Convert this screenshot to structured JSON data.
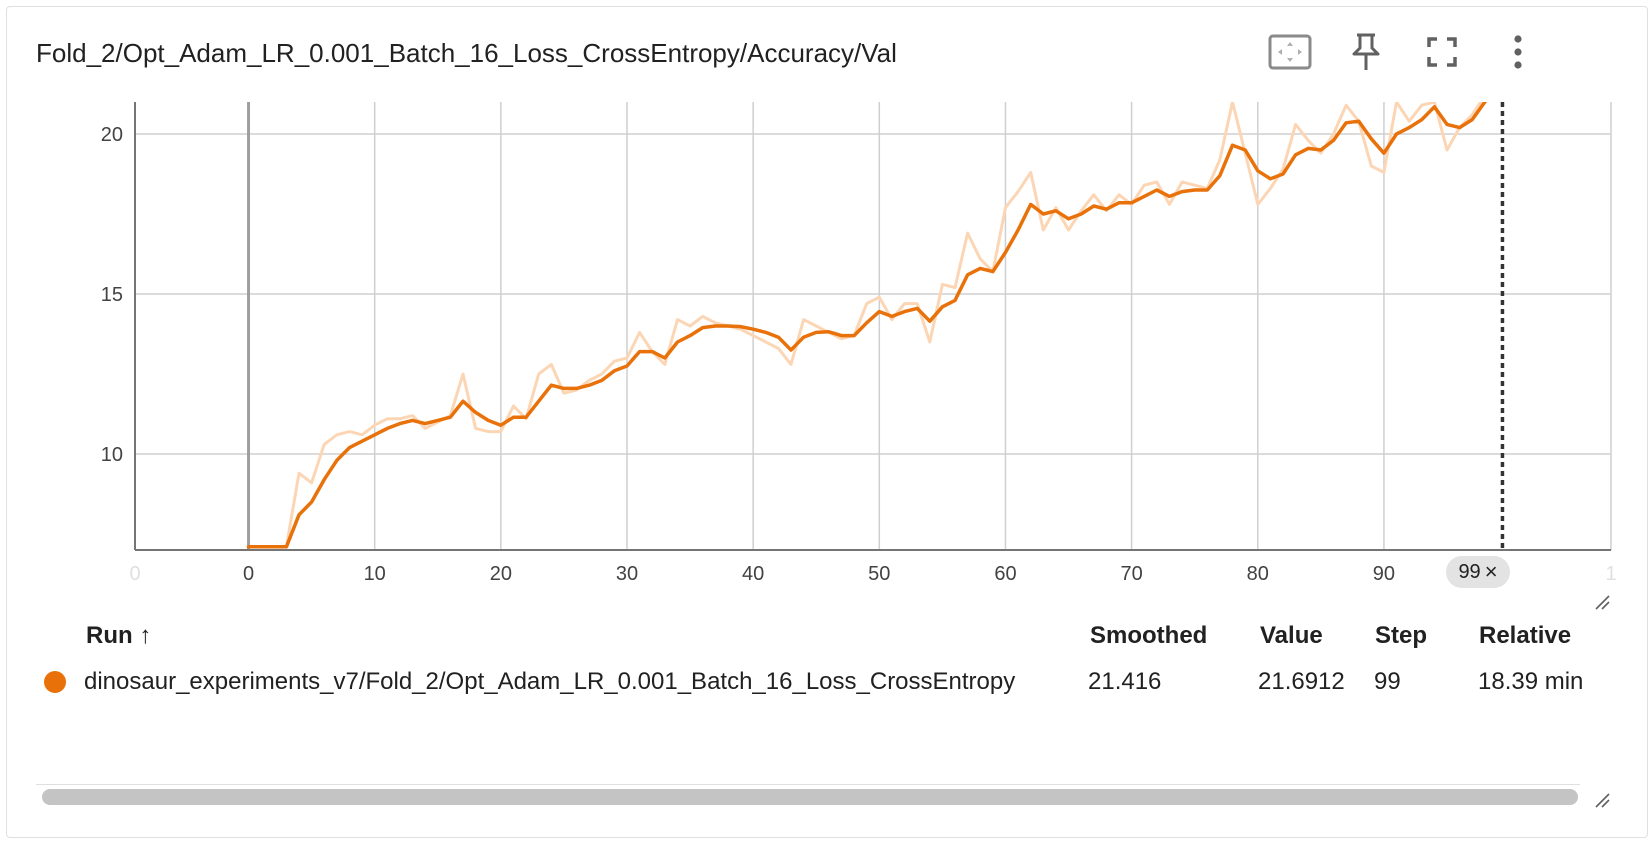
{
  "card": {
    "title": "Fold_2/Opt_Adam_LR_0.001_Batch_16_Loss_CrossEntropy/Accuracy/Val"
  },
  "toolbar": {
    "icons": [
      "fit-domain-icon",
      "pin-icon",
      "fullscreen-icon",
      "more-vert-icon"
    ]
  },
  "colors": {
    "smoothed": "#e8710a",
    "raw": "#fcd6b4",
    "grid": "#cfcfcf",
    "axis": "#9e9e9e"
  },
  "chart_data": {
    "type": "line",
    "title": "",
    "xlabel": "",
    "ylabel": "",
    "xlim": [
      -9,
      108
    ],
    "ylim": [
      7,
      21
    ],
    "x_ticks": [
      "0",
      "0",
      "10",
      "20",
      "30",
      "40",
      "50",
      "60",
      "70",
      "80",
      "90",
      "1"
    ],
    "y_ticks": [
      "10",
      "15",
      "20"
    ],
    "grid": true,
    "cursor_step": 99,
    "cursor_label": "99",
    "series": [
      {
        "role": "raw",
        "x": [
          0,
          1,
          2,
          3,
          4,
          5,
          6,
          7,
          8,
          9,
          10,
          11,
          12,
          13,
          14,
          15,
          16,
          17,
          18,
          19,
          20,
          21,
          22,
          23,
          24,
          25,
          26,
          27,
          28,
          29,
          30,
          31,
          32,
          33,
          34,
          35,
          36,
          37,
          38,
          39,
          40,
          41,
          42,
          43,
          44,
          45,
          46,
          47,
          48,
          49,
          50,
          51,
          52,
          53,
          54,
          55,
          56,
          57,
          58,
          59,
          60,
          61,
          62,
          63,
          64,
          65,
          66,
          67,
          68,
          69,
          70,
          71,
          72,
          73,
          74,
          75,
          76,
          77,
          78,
          79,
          80,
          81,
          82,
          83,
          84,
          85,
          86,
          87,
          88,
          89,
          90,
          91,
          92,
          93,
          94,
          95,
          96,
          97,
          98,
          99
        ],
        "values": [
          7.1,
          7.1,
          7.1,
          7.1,
          9.4,
          9.1,
          10.3,
          10.6,
          10.7,
          10.6,
          10.9,
          11.1,
          11.1,
          11.2,
          10.8,
          11.0,
          11.2,
          12.5,
          10.8,
          10.7,
          10.7,
          11.5,
          11.1,
          12.5,
          12.8,
          11.9,
          12.0,
          12.3,
          12.5,
          12.9,
          13.0,
          13.8,
          13.2,
          12.8,
          14.2,
          14.0,
          14.3,
          14.1,
          14.0,
          13.9,
          13.7,
          13.5,
          13.3,
          12.8,
          14.2,
          14.0,
          13.8,
          13.6,
          13.7,
          14.7,
          14.9,
          14.2,
          14.7,
          14.7,
          13.5,
          15.3,
          15.2,
          16.9,
          16.1,
          15.7,
          17.7,
          18.2,
          18.8,
          17.0,
          17.7,
          17.0,
          17.6,
          18.1,
          17.6,
          18.1,
          17.8,
          18.4,
          18.5,
          17.8,
          18.5,
          18.4,
          18.3,
          19.2,
          21.0,
          19.4,
          17.8,
          18.3,
          18.9,
          20.3,
          19.8,
          19.4,
          20.0,
          20.9,
          20.4,
          19.0,
          18.8,
          21.0,
          20.4,
          20.9,
          21.0,
          19.5,
          20.2,
          20.6,
          21.2,
          21.6912
        ]
      },
      {
        "role": "smoothed",
        "x": [
          0,
          1,
          2,
          3,
          4,
          5,
          6,
          7,
          8,
          9,
          10,
          11,
          12,
          13,
          14,
          15,
          16,
          17,
          18,
          19,
          20,
          21,
          22,
          23,
          24,
          25,
          26,
          27,
          28,
          29,
          30,
          31,
          32,
          33,
          34,
          35,
          36,
          37,
          38,
          39,
          40,
          41,
          42,
          43,
          44,
          45,
          46,
          47,
          48,
          49,
          50,
          51,
          52,
          53,
          54,
          55,
          56,
          57,
          58,
          59,
          60,
          61,
          62,
          63,
          64,
          65,
          66,
          67,
          68,
          69,
          70,
          71,
          72,
          73,
          74,
          75,
          76,
          77,
          78,
          79,
          80,
          81,
          82,
          83,
          84,
          85,
          86,
          87,
          88,
          89,
          90,
          91,
          92,
          93,
          94,
          95,
          96,
          97,
          98,
          99
        ],
        "values": [
          7.1,
          7.1,
          7.1,
          7.1,
          8.1,
          8.5,
          9.2,
          9.8,
          10.2,
          10.4,
          10.6,
          10.8,
          10.95,
          11.05,
          10.95,
          11.05,
          11.15,
          11.65,
          11.3,
          11.05,
          10.9,
          11.15,
          11.15,
          11.65,
          12.15,
          12.05,
          12.05,
          12.15,
          12.3,
          12.6,
          12.75,
          13.2,
          13.2,
          13.0,
          13.5,
          13.7,
          13.95,
          14.0,
          14.0,
          13.98,
          13.9,
          13.8,
          13.65,
          13.25,
          13.65,
          13.8,
          13.82,
          13.7,
          13.7,
          14.1,
          14.45,
          14.3,
          14.45,
          14.55,
          14.15,
          14.6,
          14.8,
          15.6,
          15.8,
          15.7,
          16.3,
          17.0,
          17.8,
          17.5,
          17.6,
          17.35,
          17.5,
          17.75,
          17.65,
          17.85,
          17.85,
          18.05,
          18.25,
          18.05,
          18.2,
          18.25,
          18.25,
          18.7,
          19.65,
          19.5,
          18.85,
          18.6,
          18.75,
          19.35,
          19.55,
          19.5,
          19.8,
          20.35,
          20.4,
          19.85,
          19.4,
          20.0,
          20.2,
          20.45,
          20.85,
          20.3,
          20.2,
          20.45,
          21.0,
          21.416
        ]
      }
    ]
  },
  "table": {
    "headers": {
      "run": "Run ↑",
      "smoothed": "Smoothed",
      "value": "Value",
      "step": "Step",
      "relative": "Relative"
    },
    "rows": [
      {
        "run": "dinosaur_experiments_v7/Fold_2/Opt_Adam_LR_0.001_Batch_16_Loss_CrossEntropy",
        "smoothed": "21.416",
        "value": "21.6912",
        "step": "99",
        "relative": "18.39 min"
      }
    ]
  }
}
